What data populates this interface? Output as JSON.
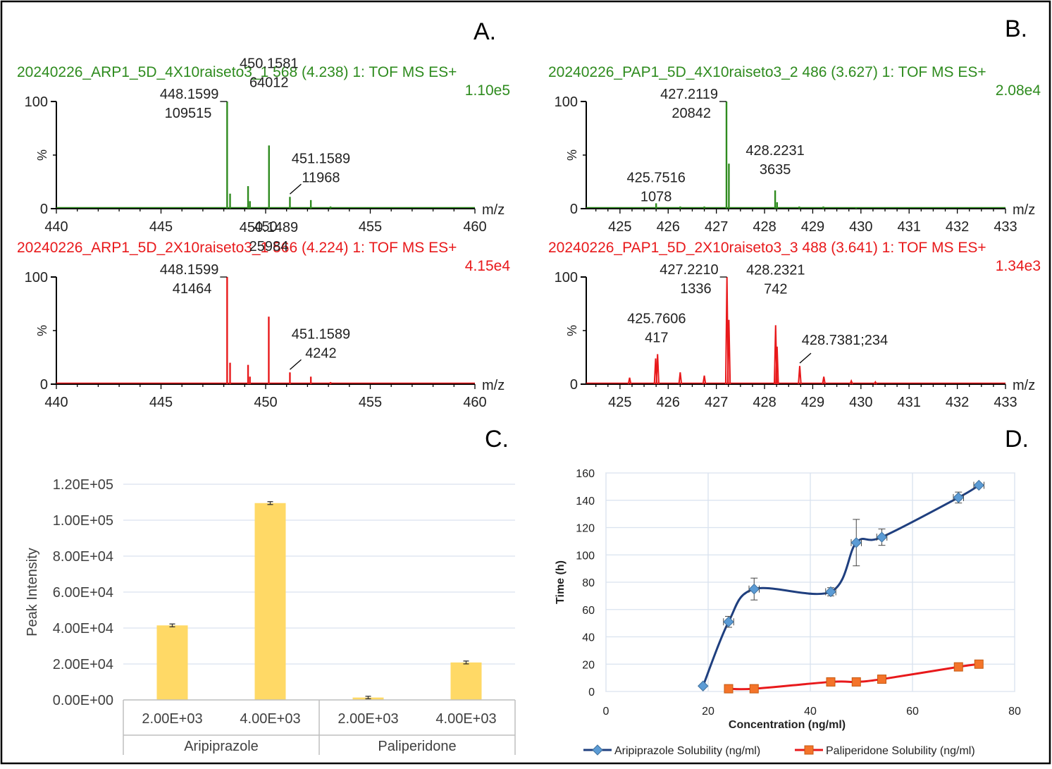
{
  "figure": {
    "panel_labels": [
      "A.",
      "B.",
      "C.",
      "D."
    ]
  },
  "colors": {
    "green": "#2e8b1e",
    "red": "#e8191b",
    "bar": "#ffd966",
    "blue_line": "#1f3f7f",
    "blue_marker": "#5b9bd5",
    "orange_line": "#e8191b",
    "orange_marker": "#f4742a",
    "grid": "#d9e2ef"
  },
  "chart_data": [
    {
      "panel": "A.",
      "type": "line",
      "xlabel": "m/z",
      "ylabel": "%",
      "xlim": [
        440,
        460
      ],
      "xticks": [
        "440",
        "445",
        "450",
        "455",
        "460"
      ],
      "ylim": [
        0,
        100
      ],
      "yticks": [
        "0",
        "100"
      ],
      "spectra": [
        {
          "color": "green",
          "header": "20240226_ARP1_5D_4X10raiseto3_1 568 (4.238) 1: TOF MS ES+",
          "intensity": "1.10e5",
          "peaks": [
            [
              448.16,
              100
            ],
            [
              448.3,
              14
            ],
            [
              449.16,
              21
            ],
            [
              449.25,
              7
            ],
            [
              450.16,
              59
            ],
            [
              451.16,
              11
            ],
            [
              452.16,
              8
            ],
            [
              453.1,
              2
            ]
          ],
          "labels": [
            {
              "mz": 448.16,
              "text": [
                "448.1599",
                "109515"
              ],
              "leader": "right"
            },
            {
              "mz": 450.16,
              "text": [
                "450.1581",
                "64012"
              ],
              "leader": "none"
            },
            {
              "mz": 451.16,
              "text": [
                "451.1589",
                "11968"
              ],
              "leader": "diag"
            }
          ]
        },
        {
          "color": "red",
          "header": "20240226_ARP1_5D_2X10raiseto3_1 566 (4.224) 1: TOF MS ES+",
          "intensity": "4.15e4",
          "peaks": [
            [
              448.16,
              100
            ],
            [
              448.3,
              20
            ],
            [
              449.16,
              18
            ],
            [
              449.25,
              7
            ],
            [
              450.15,
              63
            ],
            [
              451.16,
              11
            ],
            [
              452.16,
              7
            ],
            [
              453.1,
              2
            ]
          ],
          "labels": [
            {
              "mz": 448.16,
              "text": [
                "448.1599",
                "41464"
              ],
              "leader": "right"
            },
            {
              "mz": 450.15,
              "text": [
                "450.1489",
                "25984"
              ],
              "leader": "none"
            },
            {
              "mz": 451.16,
              "text": [
                "451.1589",
                "4242"
              ],
              "leader": "diag"
            }
          ]
        }
      ]
    },
    {
      "panel": "B.",
      "type": "line",
      "xlabel": "m/z",
      "ylabel": "%",
      "xlim": [
        424.3,
        433
      ],
      "xticks": [
        "425",
        "426",
        "427",
        "428",
        "429",
        "430",
        "431",
        "432",
        "433"
      ],
      "ylim": [
        0,
        100
      ],
      "yticks": [
        "0",
        "100"
      ],
      "spectra": [
        {
          "color": "green",
          "header": "20240226_PAP1_5D_4X10raiseto3_2 486 (3.627) 1: TOF MS ES+",
          "intensity": "2.08e4",
          "peaks": [
            [
              425.75,
              5
            ],
            [
              426.25,
              2
            ],
            [
              426.75,
              2
            ],
            [
              427.21,
              100
            ],
            [
              427.26,
              42
            ],
            [
              428.22,
              17
            ],
            [
              428.26,
              6
            ],
            [
              428.72,
              2
            ],
            [
              429.22,
              2
            ],
            [
              429.9,
              1
            ]
          ],
          "labels": [
            {
              "mz": 427.21,
              "text": [
                "427.2119",
                "20842"
              ],
              "leader": "right"
            },
            {
              "mz": 428.22,
              "text": [
                "428.2231",
                "3635"
              ],
              "leader": "none"
            },
            {
              "mz": 425.75,
              "text": [
                "425.7516",
                "1078"
              ],
              "leader": "none"
            }
          ]
        },
        {
          "color": "red",
          "header": "20240226_PAP1_5D_2X10raiseto3_3 488 (3.641) 1: TOF MS ES+",
          "intensity": "1.34e3",
          "peaks": [
            [
              425.2,
              6
            ],
            [
              425.74,
              24
            ],
            [
              425.78,
              28
            ],
            [
              426.25,
              11
            ],
            [
              426.75,
              8
            ],
            [
              427.22,
              100
            ],
            [
              427.26,
              60
            ],
            [
              428.23,
              55
            ],
            [
              428.26,
              35
            ],
            [
              428.73,
              17
            ],
            [
              429.23,
              7
            ],
            [
              429.8,
              3
            ],
            [
              430.3,
              2
            ]
          ],
          "labels": [
            {
              "mz": 427.22,
              "text": [
                "427.2210",
                "1336"
              ],
              "leader": "right"
            },
            {
              "mz": 428.23,
              "text": [
                "428.2321",
                "742"
              ],
              "leader": "none"
            },
            {
              "mz": 425.76,
              "text": [
                "425.7606",
                "417"
              ],
              "leader": "none"
            },
            {
              "mz": 428.73,
              "text": [
                "428.7381;234"
              ],
              "leader": "diag"
            }
          ]
        }
      ]
    },
    {
      "panel": "C.",
      "type": "bar",
      "ylabel": "Peak Intensity",
      "ylim": [
        0,
        120000
      ],
      "yticks": [
        "0.00E+00",
        "2.00E+04",
        "4.00E+04",
        "6.00E+04",
        "8.00E+04",
        "1.00E+05",
        "1.20E+05"
      ],
      "categories": [
        "2.00E+03",
        "4.00E+03",
        "2.00E+03",
        "4.00E+03"
      ],
      "groups": [
        "Aripiprazole",
        "Paliperidone"
      ],
      "values": [
        41464,
        109515,
        1336,
        20842
      ],
      "errors": [
        800,
        800,
        700,
        800
      ],
      "grid": true
    },
    {
      "panel": "D.",
      "type": "scatter",
      "xlabel": "Concentration (ng/ml)",
      "ylabel": "Time (h)",
      "xlim": [
        0,
        80
      ],
      "ylim": [
        0,
        160
      ],
      "xticks": [
        "0",
        "20",
        "40",
        "60",
        "80"
      ],
      "yticks": [
        "0",
        "20",
        "40",
        "60",
        "80",
        "100",
        "120",
        "140",
        "160"
      ],
      "grid": true,
      "legend": "bottom",
      "series": [
        {
          "name": "Aripiprazole Solubility (ng/ml)",
          "x": [
            19,
            24,
            29,
            44,
            49,
            54,
            69,
            73
          ],
          "y": [
            4,
            51,
            75,
            73,
            109,
            113,
            142,
            151
          ],
          "xerr": [
            0,
            1,
            1,
            1,
            1,
            1,
            1,
            1
          ],
          "yerr": [
            0,
            4,
            8,
            3,
            17,
            6,
            4,
            1
          ]
        },
        {
          "name": "Paliperidone Solubility (ng/ml)",
          "x": [
            24,
            29,
            44,
            49,
            54,
            69,
            73
          ],
          "y": [
            2,
            2,
            7,
            7,
            9,
            18,
            20
          ],
          "xerr": [
            0,
            0,
            0,
            0,
            0,
            0,
            0
          ],
          "yerr": [
            0,
            0,
            0,
            0,
            0,
            0,
            0
          ]
        }
      ]
    }
  ]
}
